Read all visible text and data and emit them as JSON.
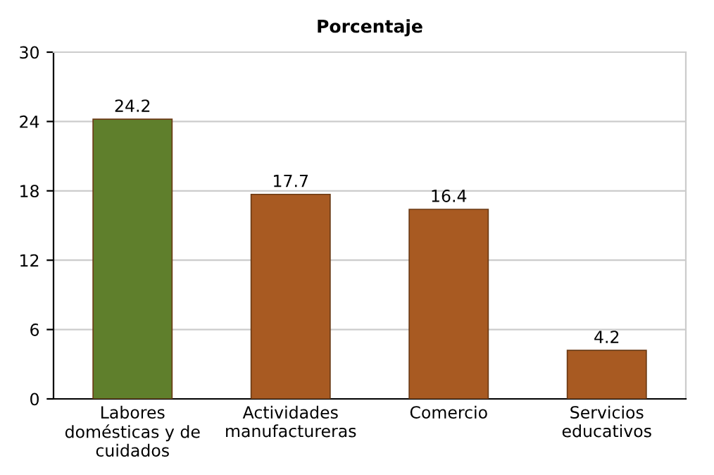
{
  "chart_data": {
    "type": "bar",
    "title": "Porcentaje",
    "categories": [
      "Labores domésticas y de cuidados",
      "Actividades manufactureras",
      "Comercio",
      "Servicios educativos"
    ],
    "values": [
      24.2,
      17.7,
      16.4,
      4.2
    ],
    "colors": [
      "#5f7f2c",
      "#a85a22",
      "#a85a22",
      "#a85a22"
    ],
    "ylim": [
      0,
      30
    ],
    "yticks": [
      0,
      6,
      12,
      18,
      24,
      30
    ],
    "grid": "y",
    "data_labels": true
  }
}
